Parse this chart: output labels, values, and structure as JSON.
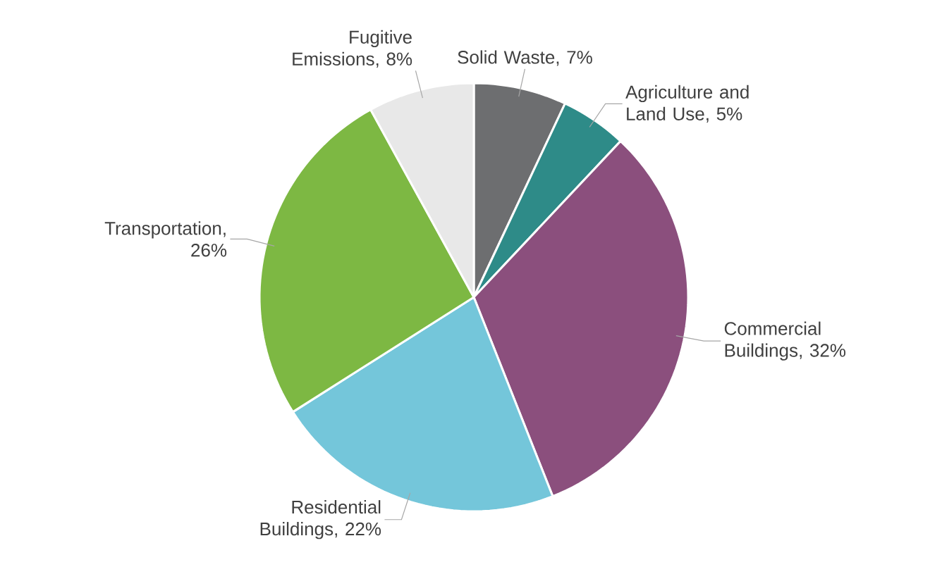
{
  "chart_data": {
    "type": "pie",
    "categories": [
      "Solid Waste",
      "Agriculture and Land Use",
      "Commercial Buildings",
      "Residential Buildings",
      "Transportation",
      "Fugitive Emissions"
    ],
    "values": [
      7,
      5,
      32,
      22,
      26,
      8
    ],
    "value_labels": [
      ", 7%",
      ", 5%",
      ", 32%",
      ", 22%",
      ", 26%",
      ", 8%"
    ],
    "colors": [
      "#6d6e70",
      "#2e8b88",
      "#8b4f7d",
      "#74c6da",
      "#7db843",
      "#e8e8e8"
    ]
  }
}
